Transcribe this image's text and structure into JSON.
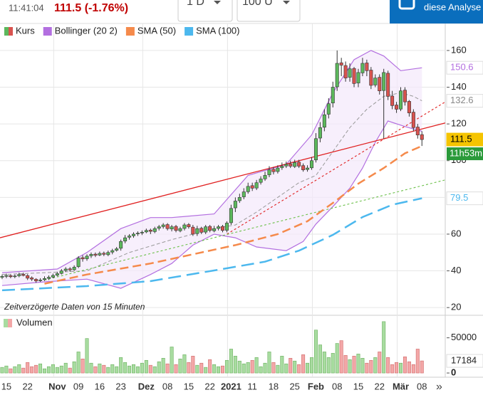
{
  "header": {
    "time": "11:41:04",
    "price_change": "111.5 (-1.76%)",
    "interval": "1 D",
    "count": "100 U",
    "button": "diese Analyse"
  },
  "chart_data": [
    {
      "type": "candlestick",
      "note": "Zeitverzögerte Daten von 15 Minuten",
      "countdown": "11h53m",
      "categories": [
        null,
        "15",
        null,
        null,
        null,
        null,
        "22",
        null,
        null,
        null,
        null,
        null,
        null,
        "Nov",
        null,
        null,
        null,
        null,
        "09",
        null,
        null,
        null,
        null,
        "16",
        null,
        null,
        null,
        null,
        "23",
        null,
        null,
        null,
        null,
        null,
        "Dez",
        null,
        null,
        null,
        null,
        "08",
        null,
        null,
        null,
        null,
        "15",
        null,
        null,
        null,
        null,
        "22",
        null,
        null,
        null,
        null,
        "2021",
        null,
        null,
        null,
        null,
        "11",
        null,
        null,
        null,
        null,
        "18",
        null,
        null,
        null,
        null,
        "25",
        null,
        null,
        null,
        null,
        "Feb",
        null,
        null,
        null,
        null,
        "08",
        null,
        null,
        null,
        null,
        "15",
        null,
        null,
        null,
        null,
        "22",
        null,
        null,
        null,
        null,
        "Mär",
        null,
        null,
        null,
        null,
        "08"
      ],
      "xlim": [
        -0.5,
        104.5
      ],
      "ylim": [
        15.8,
        174.7
      ],
      "yticks": [
        20,
        40,
        60,
        80,
        100,
        120,
        140,
        160
      ],
      "grid": true,
      "series": [
        {
          "name": "Kurs",
          "up_color": "#5cb85c",
          "down_color": "#d9534f",
          "open": [
            36.5,
            37,
            37.4,
            36.9,
            37.3,
            38.1,
            37.4,
            36.2,
            35.4,
            34.6,
            35.2,
            35.9,
            36.6,
            37.6,
            38.6,
            40.2,
            41.1,
            40.6,
            42.3,
            47.2,
            46.6,
            48.2,
            49.1,
            48.6,
            49.6,
            48.8,
            50.2,
            51.2,
            52.3,
            56.2,
            58.3,
            59.1,
            60.2,
            60.6,
            61.2,
            62.2,
            61.4,
            63.2,
            64.1,
            65.2,
            62.8,
            64.2,
            61.8,
            63.1,
            65.2,
            63.8,
            60.3,
            63.2,
            61.1,
            64.2,
            61.8,
            63.1,
            64.2,
            62.1,
            66.2,
            74.3,
            78.2,
            80.3,
            83.1,
            86.4,
            85.1,
            88.2,
            90.1,
            92.3,
            95.3,
            94.1,
            96.2,
            97.1,
            98.3,
            96.8,
            99.2,
            97.3,
            95.2,
            96.1,
            100.4,
            112.3,
            118.2,
            125.3,
            131.4,
            140.2,
            153.3,
            151.8,
            145.4,
            150.2,
            142.3,
            147.8,
            153.2,
            149.3,
            141.2,
            145.4,
            138.2,
            147.6,
            135.2,
            130.3,
            128.1,
            138.4,
            132.3,
            126.4,
            118.3,
            114.2
          ],
          "high": [
            38,
            38.5,
            38,
            38,
            39,
            39,
            38.2,
            37,
            36,
            36,
            37,
            37.5,
            38.5,
            39.5,
            41,
            42,
            42,
            43,
            48,
            48.5,
            49,
            50,
            50,
            50.5,
            50.5,
            51,
            52,
            53,
            57,
            59.5,
            60,
            61,
            61.5,
            62,
            63,
            63,
            64,
            65,
            66,
            66,
            65,
            65,
            64,
            66,
            66,
            65,
            64.5,
            64,
            65,
            65,
            64.5,
            65,
            65,
            67,
            76,
            80,
            82,
            85,
            88,
            88,
            89.5,
            91.5,
            94,
            97,
            96.5,
            97.5,
            99,
            99.5,
            100,
            100.5,
            100.5,
            98.5,
            97.5,
            102,
            115,
            121,
            128,
            134,
            143,
            160,
            156,
            154,
            153,
            151,
            150,
            156,
            155,
            151,
            147,
            147,
            150,
            149,
            138,
            132,
            140,
            140,
            133,
            128,
            120,
            116
          ],
          "low": [
            35.5,
            36,
            36,
            36,
            36.5,
            37,
            35,
            34.5,
            33.5,
            34,
            34.5,
            35,
            36,
            37,
            38,
            39.5,
            39.5,
            40,
            41.5,
            45,
            45.5,
            47,
            47.5,
            48,
            48,
            48,
            49,
            50.5,
            51,
            55,
            57,
            58,
            59,
            59.5,
            60.5,
            60,
            60.5,
            62,
            63,
            62,
            61.5,
            61,
            61,
            62,
            63,
            59,
            59,
            60,
            60,
            61,
            61,
            62,
            61,
            61,
            65,
            72,
            77,
            79,
            82,
            83.5,
            84,
            87,
            89,
            91,
            92.5,
            93,
            95,
            96,
            96,
            96,
            96,
            94,
            94,
            95,
            99,
            110,
            116,
            123,
            129,
            138,
            146,
            143,
            143,
            140,
            140,
            146,
            146,
            139,
            140,
            136,
            112,
            133,
            128,
            126,
            127,
            130,
            124,
            116,
            112,
            108
          ],
          "close": [
            37,
            37.5,
            36.8,
            37.2,
            38,
            37.5,
            36,
            35.5,
            34.5,
            35,
            35.8,
            36.5,
            37.5,
            38.5,
            40,
            41,
            40.5,
            42,
            47,
            46.5,
            48,
            49,
            48.5,
            49.5,
            49,
            50,
            51,
            52,
            56,
            58,
            59,
            60,
            60.5,
            61,
            62,
            61.5,
            63,
            64,
            65,
            63,
            64,
            62,
            63,
            65,
            64,
            60,
            63,
            61,
            64,
            62,
            63,
            64,
            62,
            66,
            74,
            78,
            80,
            83,
            86,
            85,
            88,
            90,
            92,
            95,
            94,
            96,
            97,
            98,
            97,
            99,
            97,
            95,
            96,
            100,
            112,
            118,
            125,
            131,
            140,
            153,
            152,
            145,
            150,
            142,
            148,
            153,
            149,
            141,
            145,
            138,
            148,
            135,
            130,
            128,
            138,
            132,
            126,
            118,
            114,
            111.5
          ]
        },
        {
          "name": "Bollinger (20 2)",
          "color": "#b36fe0",
          "fill": "#f3e8fb",
          "upper": {
            "x": [
              0,
              13,
              20,
              28,
              35,
              40,
              50,
              58,
              67,
              73,
              78,
              83,
              87,
              90,
              94,
              99
            ],
            "values": [
              39,
              41,
              50,
              63,
              69,
              69,
              71,
              92,
              98,
              114,
              137,
              155,
              160,
              157,
              149,
              150.6
            ]
          },
          "middle": {
            "x": [
              0,
              20,
              30,
              40,
              50,
              55,
              60,
              65,
              70,
              74,
              78,
              82,
              86,
              90,
              94,
              97,
              99
            ],
            "values": [
              38,
              40,
              50,
              57,
              63,
              65,
              72,
              80,
              88,
              92,
              105,
              118,
              128,
              135,
              137,
              135,
              132.6
            ],
            "color": "#999999"
          },
          "lower": {
            "x": [
              0,
              10,
              20,
              28,
              35,
              40,
              45,
              50,
              55,
              60,
              67,
              71,
              74,
              78,
              82,
              85,
              88,
              91,
              95,
              99
            ],
            "values": [
              32,
              34,
              35.5,
              30.5,
              38,
              44,
              54,
              60,
              58,
              53,
              51,
              56,
              65.5,
              75,
              85,
              96,
              110,
              121.6,
              118.6,
              116
            ]
          }
        },
        {
          "name": "SMA (50)",
          "color": "#f58a4b",
          "x": [
            10,
            20,
            35,
            45,
            55,
            65,
            72,
            78,
            84,
            90,
            95,
            99
          ],
          "values": [
            33,
            38,
            44,
            49,
            54,
            60,
            67,
            77,
            87.5,
            96,
            104,
            108
          ]
        },
        {
          "name": "SMA (100)",
          "color": "#4cb8ee",
          "x": [
            0,
            20,
            35,
            50,
            62,
            70,
            78,
            85,
            92,
            99
          ],
          "values": [
            29.4,
            31.7,
            34.4,
            40.2,
            45,
            51,
            59.6,
            69.3,
            76,
            79.5
          ]
        }
      ],
      "trendlines": [
        {
          "color": "#e02020",
          "style": "solid",
          "x": [
            -0.5,
            104.5
          ],
          "values": [
            58,
            120.5
          ]
        },
        {
          "color": "#e02020",
          "style": "dotted",
          "x": [
            53,
            104.5
          ],
          "values": [
            60,
            132
          ]
        },
        {
          "color": "#6cc04a",
          "style": "dotted",
          "x": [
            10,
            104.5
          ],
          "values": [
            35,
            89.5
          ]
        }
      ],
      "price_tags": [
        {
          "value": 150.6,
          "color": "#b36fe0",
          "background": "#ffffff"
        },
        {
          "value": 132.6,
          "color": "#888888",
          "background": "#ffffff"
        },
        {
          "value": 111.5,
          "color": "#000000",
          "background": "#f5c400"
        },
        {
          "value": 79.5,
          "color": "#4cb8ee",
          "background": "#ffffff"
        }
      ]
    },
    {
      "type": "bar",
      "name": "Volumen",
      "up_color": "#a8dca0",
      "down_color": "#f3a7a7",
      "values": [
        8000,
        10000,
        6000,
        9000,
        12000,
        7000,
        15000,
        9000,
        11000,
        13000,
        6000,
        9000,
        12000,
        8000,
        10000,
        14000,
        7000,
        16000,
        30000,
        20000,
        49000,
        14000,
        9000,
        13000,
        11000,
        8000,
        12000,
        9000,
        22000,
        15000,
        10000,
        12000,
        9000,
        14000,
        18000,
        11000,
        9000,
        16000,
        21000,
        13000,
        37000,
        12000,
        20000,
        26000,
        15000,
        24000,
        11000,
        14000,
        8000,
        19000,
        12000,
        9000,
        10000,
        18000,
        34000,
        24000,
        17000,
        13000,
        15000,
        18000,
        22000,
        9000,
        14000,
        30000,
        15000,
        11000,
        24000,
        13000,
        21000,
        17000,
        12000,
        26000,
        14000,
        22000,
        61000,
        40000,
        30000,
        22000,
        28000,
        42000,
        46000,
        25000,
        19000,
        24000,
        27000,
        21000,
        14000,
        18000,
        22000,
        30000,
        73000,
        22000,
        12000,
        15000,
        14000,
        23000,
        16000,
        12000,
        34000,
        17184
      ],
      "ylim": [
        -6000,
        82000
      ],
      "yticks": [
        0,
        17184,
        50000
      ]
    }
  ]
}
